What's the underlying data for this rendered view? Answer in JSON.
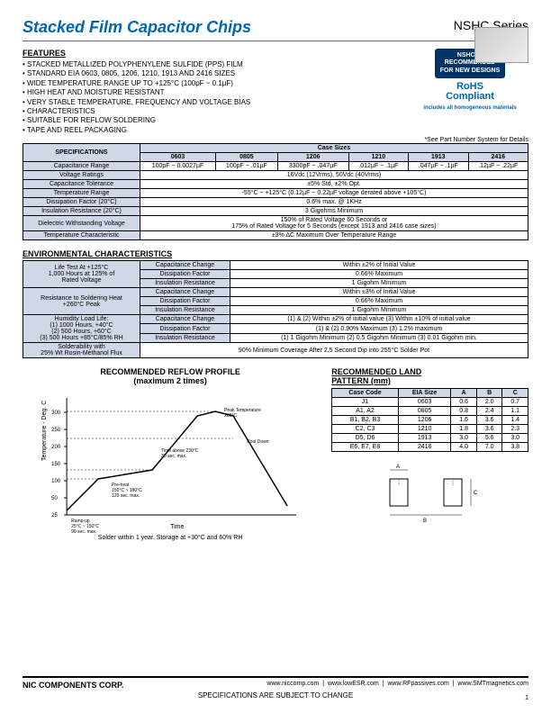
{
  "header": {
    "title": "Stacked Film Capacitor Chips",
    "series": "NSHC Series"
  },
  "features": {
    "heading": "FEATURES",
    "items": [
      "STACKED METALLIZED POLYPHENYLENE SULFIDE (PPS) FILM",
      "STANDARD EIA 0603, 0805, 1206, 1210, 1913 AND 2416 SIZES",
      "WIDE TEMPERATURE RANGE UP TO +125°C (100pF ~ 0.1µF)",
      "HIGH HEAT AND MOISTURE RESISTANT",
      "VERY STABLE TEMPERATURE, FREQUENCY AND VOLTAGE BIAS",
      "   CHARACTERISTICS",
      "SUITABLE FOR REFLOW SOLDERING",
      "TAPE AND REEL PACKAGING"
    ]
  },
  "badge": {
    "l1": "NSHC IS",
    "l2": "RECOMMENDED",
    "l3": "FOR NEW DESIGNS"
  },
  "rohs": {
    "main": "RoHS",
    "sub": "Compliant",
    "note": "includes all homogeneous materials"
  },
  "partnote": "*See Part Number System for Details",
  "spec": {
    "title": "SPECIFICATIONS",
    "casetitle": "Case Sizes",
    "cols": [
      "0603",
      "0805",
      "1206",
      "1210",
      "1913",
      "2416"
    ],
    "rows": [
      {
        "label": "Capacitance Range",
        "vals": [
          "100pF ~ 0.0027µF",
          "100pF ~ .01µF",
          "3300pF ~ .047µF",
          ".012µF ~ .1µF",
          ".047µF ~ .1µF",
          ".12µF ~ .22µF"
        ]
      },
      {
        "label": "Voltage Ratings",
        "span": "16Vdc (12Vrms), 50Vdc (40Vrms)"
      },
      {
        "label": "Capacitance Tolerance",
        "span": "±5% Std, ±2% Opt."
      },
      {
        "label": "Temperature Range",
        "span": "-55°C ~ +125°C (0.12µF ~ 0.22µF voltage derated above +105°C)"
      },
      {
        "label": "Dissipation Factor (20°C)",
        "span": "0.6% max. @ 1KHz"
      },
      {
        "label": "Insulation Resistance (20°C)",
        "span": "3 Gigohms Minimum"
      },
      {
        "label": "Dielectric Withstanding Voltage",
        "span": "150% of Rated Voltage 60 Seconds or\n175% of Rated Voltage for 5 Seconds (except 1913 and 2416 case sizes)"
      },
      {
        "label": "Temperature Characteristic",
        "span": "±3% ΔC Maximum Over Temperature Range"
      }
    ]
  },
  "env": {
    "title": "ENVIRONMENTAL CHARACTERISTICS",
    "rows": [
      {
        "g": "Life Test At +125°C\n1,000 Hours at 125% of\nRated Voltage",
        "items": [
          [
            "Capacitance Change",
            "Within ±2% of Initial Value"
          ],
          [
            "Dissipation Factor",
            "0.66% Maximum"
          ],
          [
            "Insulation Resistance",
            "1 Gigohm Minimum"
          ]
        ]
      },
      {
        "g": "Resistance to Soldering Heat\n+260°C Peak",
        "items": [
          [
            "Capacitance Change",
            "Within ±3% of Initial Value"
          ],
          [
            "Dissipation Factor",
            "0.66% Maximum"
          ],
          [
            "Insulation Resistance",
            "1 Gigohm Minimum"
          ]
        ]
      },
      {
        "g": "Humidity Load Life:\n(1) 1000 Hours, +40°C\n(2) 500 Hours, +60°C\n(3) 500 Hours +85°C/85% RH",
        "items": [
          [
            "Capacitance Change",
            "(1) & (2) Within ±2% of initial value (3) Within ±10% of initial value"
          ],
          [
            "Dissipation Factor",
            "(1) & (2) 0.90% Maximum (3) 1.2% maximum"
          ],
          [
            "Insulation Resistance",
            "(1) 1 Gigohm Minimum (2) 0.5 Gigohm Minimum (3) 0.01 Gigohm min."
          ]
        ]
      },
      {
        "g": "Solderability with\n25% Wt Rosin-Methanol Flux",
        "items": [
          [
            "",
            "90% Minimum Coverage After 2.5 Second Dip into 255°C Solder Pot"
          ]
        ]
      }
    ]
  },
  "reflow": {
    "title": "RECOMMENDED REFLOW PROFILE",
    "sub": "(maximum 2 times)",
    "ylabel": "Temperature - Deg. C",
    "xlabel": "Time",
    "note": "Solder within 1 year. Storage at +30°C and 60% RH",
    "yticks": [
      "25",
      "50",
      "100",
      "150",
      "200",
      "250",
      "300"
    ],
    "annotations": {
      "ramp": "Ramp-up\n25°C ~ 150°C\n90 sec. max.",
      "preheat": "Pre-heat\n150°C ~ 180°C\n120 sec. max.",
      "above": "Time above 230°C\n30 sec. max.",
      "peak": "Peak Temperature\n260°C",
      "cool": "Cool Down"
    }
  },
  "land": {
    "title": "RECOMMENDED LAND",
    "sub": "PATTERN (mm)",
    "cols": [
      "Case Code",
      "EIA Size",
      "A",
      "B",
      "C"
    ],
    "rows": [
      [
        "J1",
        "0603",
        "0.6",
        "2.0",
        "0.7"
      ],
      [
        "A1, A2",
        "0805",
        "0.8",
        "2.4",
        "1.1"
      ],
      [
        "B1, B2, B3",
        "1206",
        "1.6",
        "3.6",
        "1.4"
      ],
      [
        "C2, C3",
        "1210",
        "1.8",
        "3.6",
        "2.3"
      ],
      [
        "D5, D6",
        "1913",
        "3.0",
        "5.6",
        "3.0"
      ],
      [
        "E6, E7, E8",
        "2416",
        "4.0",
        "7.0",
        "3.8"
      ]
    ]
  },
  "footer": {
    "company": "NIC COMPONENTS CORP.",
    "links": [
      "www.niccomp.com",
      "www.lowESR.com",
      "www.RFpassives.com",
      "www.SMTmagnetics.com"
    ],
    "disclaimer": "SPECIFICATIONS ARE SUBJECT TO CHANGE",
    "page": "1"
  }
}
